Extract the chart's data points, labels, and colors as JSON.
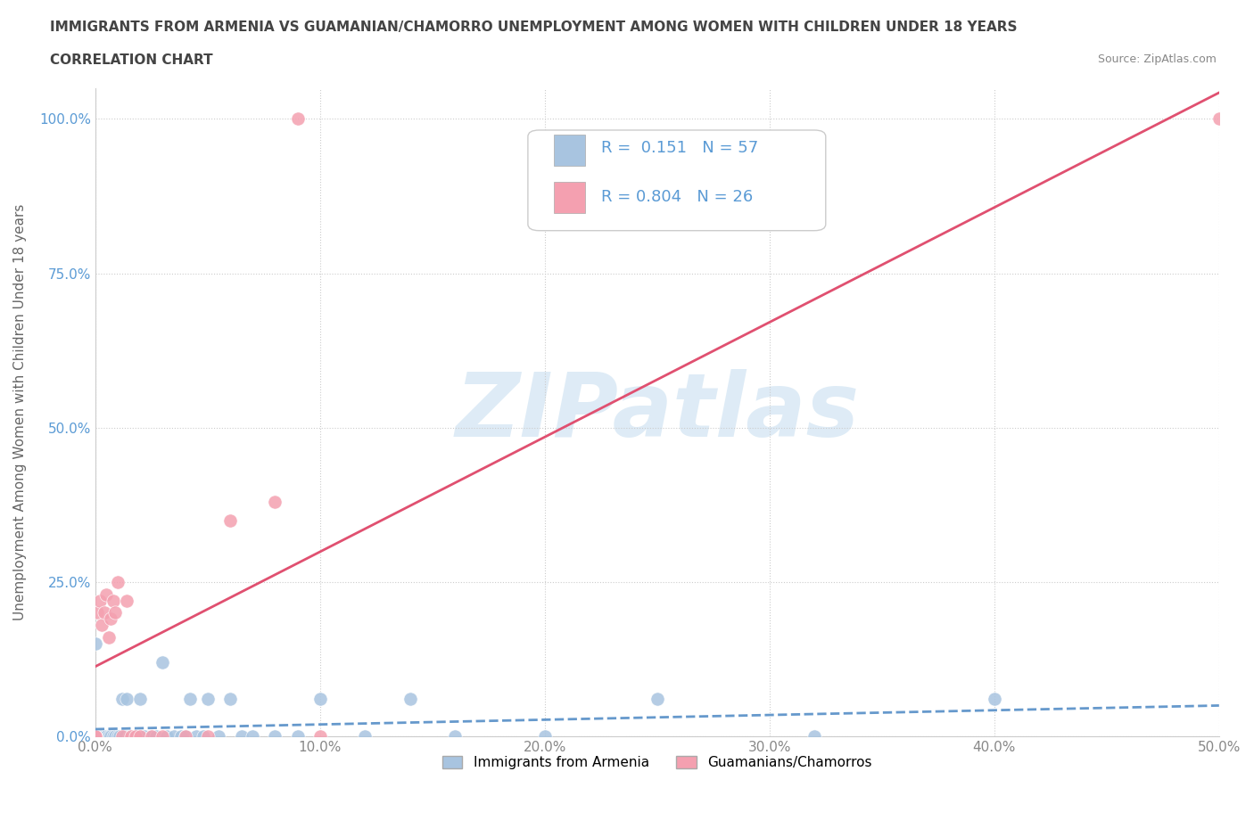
{
  "title_line1": "IMMIGRANTS FROM ARMENIA VS GUAMANIAN/CHAMORRO UNEMPLOYMENT AMONG WOMEN WITH CHILDREN UNDER 18 YEARS",
  "title_line2": "CORRELATION CHART",
  "source_text": "Source: ZipAtlas.com",
  "ylabel": "Unemployment Among Women with Children Under 18 years",
  "xlim": [
    0.0,
    0.5
  ],
  "ylim": [
    0.0,
    1.05
  ],
  "xticks": [
    0.0,
    0.1,
    0.2,
    0.3,
    0.4,
    0.5
  ],
  "xticklabels": [
    "0.0%",
    "10.0%",
    "20.0%",
    "30.0%",
    "40.0%",
    "50.0%"
  ],
  "yticks": [
    0.0,
    0.25,
    0.5,
    0.75,
    1.0
  ],
  "yticklabels": [
    "0.0%",
    "25.0%",
    "50.0%",
    "75.0%",
    "100.0%"
  ],
  "armenia_R": 0.151,
  "armenia_N": 57,
  "guam_R": 0.804,
  "guam_N": 26,
  "armenia_color": "#a8c4e0",
  "guam_color": "#f4a0b0",
  "armenia_line_color": "#6699cc",
  "guam_line_color": "#e05070",
  "legend_color": "#5b9bd5",
  "watermark": "ZIPatlas",
  "watermark_color": "#c8dff0",
  "armenia_x": [
    0.0,
    0.0,
    0.0,
    0.0,
    0.0,
    0.001,
    0.001,
    0.002,
    0.002,
    0.003,
    0.003,
    0.004,
    0.004,
    0.005,
    0.005,
    0.006,
    0.007,
    0.008,
    0.009,
    0.01,
    0.011,
    0.012,
    0.013,
    0.014,
    0.015,
    0.016,
    0.017,
    0.018,
    0.02,
    0.022,
    0.025,
    0.027,
    0.03,
    0.032,
    0.035,
    0.038,
    0.04,
    0.042,
    0.045,
    0.048,
    0.05,
    0.055,
    0.06,
    0.065,
    0.07,
    0.08,
    0.09,
    0.1,
    0.12,
    0.14,
    0.16,
    0.2,
    0.25,
    0.32,
    0.4,
    0.0,
    0.0
  ],
  "armenia_y": [
    0.0,
    0.0,
    0.0,
    0.0,
    0.15,
    0.0,
    0.0,
    0.0,
    0.0,
    0.0,
    0.0,
    0.0,
    0.0,
    0.0,
    0.0,
    0.0,
    0.0,
    0.0,
    0.0,
    0.0,
    0.0,
    0.06,
    0.0,
    0.06,
    0.0,
    0.0,
    0.0,
    0.0,
    0.06,
    0.0,
    0.0,
    0.0,
    0.12,
    0.0,
    0.0,
    0.0,
    0.0,
    0.06,
    0.0,
    0.0,
    0.06,
    0.0,
    0.06,
    0.0,
    0.0,
    0.0,
    0.0,
    0.06,
    0.0,
    0.06,
    0.0,
    0.0,
    0.06,
    0.0,
    0.06,
    0.0,
    0.0
  ],
  "guam_x": [
    0.0,
    0.0,
    0.001,
    0.002,
    0.003,
    0.004,
    0.005,
    0.006,
    0.007,
    0.008,
    0.009,
    0.01,
    0.012,
    0.014,
    0.016,
    0.018,
    0.02,
    0.025,
    0.03,
    0.04,
    0.05,
    0.06,
    0.08,
    0.1,
    0.5,
    0.09
  ],
  "guam_y": [
    0.0,
    0.0,
    0.2,
    0.22,
    0.18,
    0.2,
    0.23,
    0.16,
    0.19,
    0.22,
    0.2,
    0.25,
    0.0,
    0.22,
    0.0,
    0.0,
    0.0,
    0.0,
    0.0,
    0.0,
    0.0,
    0.35,
    0.38,
    0.0,
    1.0,
    1.0
  ]
}
